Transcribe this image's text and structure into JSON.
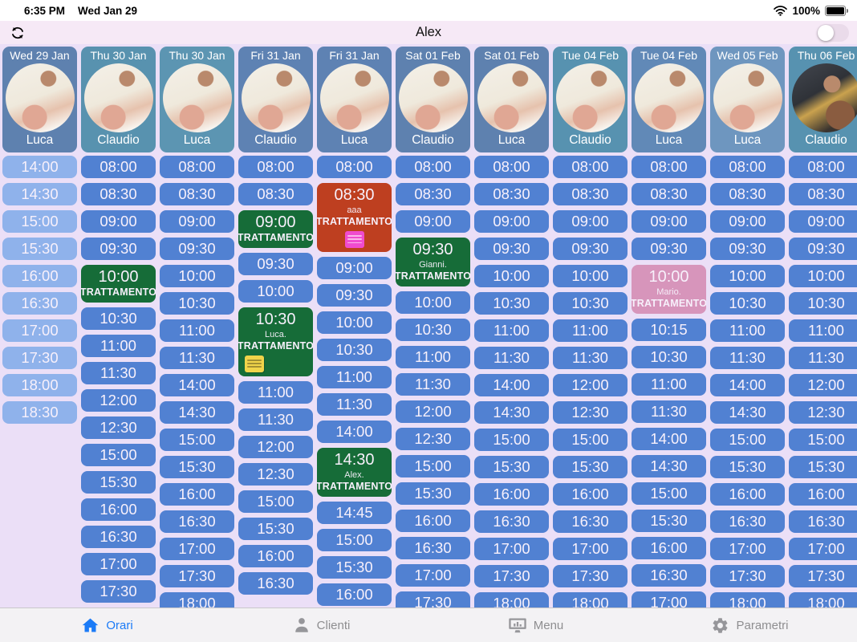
{
  "status_bar": {
    "time": "6:35 PM",
    "date": "Wed Jan 29",
    "battery": "100%"
  },
  "header": {
    "title": "Alex",
    "toggle_on": false
  },
  "colors": {
    "green": "#166C38",
    "red": "#BE3F20",
    "pink": "#D795BB",
    "slot_blue": "#5181D2",
    "slot_light_blue": "#8FB2EB",
    "background_lavender": "#EBDFF7",
    "header_bar_pink": "#F6E9F6",
    "tab_active_blue": "#1B7BF7"
  },
  "tab_bar": {
    "items": [
      {
        "label": "Orari",
        "active": true
      },
      {
        "label": "Clienti",
        "active": false
      },
      {
        "label": "Menu",
        "active": false
      },
      {
        "label": "Parametri",
        "active": false
      }
    ]
  },
  "schedule": {
    "columns": [
      {
        "date": "Wed 29 Jan",
        "name": "Luca",
        "header_color": "#5E81AF",
        "variant": "light",
        "avatar": "standard",
        "slots": [
          {
            "time": "14:00"
          },
          {
            "time": "14:30"
          },
          {
            "time": "15:00"
          },
          {
            "time": "15:30"
          },
          {
            "time": "16:00"
          },
          {
            "time": "16:30"
          },
          {
            "time": "17:00"
          },
          {
            "time": "17:30"
          },
          {
            "time": "18:00"
          },
          {
            "time": "18:30"
          }
        ]
      },
      {
        "date": "Thu 30 Jan",
        "name": "Claudio",
        "header_color": "#5892AF",
        "variant": "regular",
        "avatar": "standard",
        "slots": [
          {
            "time": "08:00"
          },
          {
            "time": "08:30"
          },
          {
            "time": "09:00"
          },
          {
            "time": "09:30"
          },
          {
            "time": "10:00",
            "status": "TRATTAMENTO",
            "color": "green"
          },
          {
            "time": "10:30"
          },
          {
            "time": "11:00"
          },
          {
            "time": "11:30"
          },
          {
            "time": "12:00"
          },
          {
            "time": "12:30"
          },
          {
            "time": "15:00"
          },
          {
            "time": "15:30"
          },
          {
            "time": "16:00"
          },
          {
            "time": "16:30"
          },
          {
            "time": "17:00"
          },
          {
            "time": "17:30"
          }
        ]
      },
      {
        "date": "Thu 30 Jan",
        "name": "Luca",
        "header_color": "#5C95B2",
        "variant": "regular",
        "avatar": "standard",
        "slots": [
          {
            "time": "08:00"
          },
          {
            "time": "08:30"
          },
          {
            "time": "09:00"
          },
          {
            "time": "09:30"
          },
          {
            "time": "10:00"
          },
          {
            "time": "10:30"
          },
          {
            "time": "11:00"
          },
          {
            "time": "11:30"
          },
          {
            "time": "14:00"
          },
          {
            "time": "14:30"
          },
          {
            "time": "15:00"
          },
          {
            "time": "15:30"
          },
          {
            "time": "16:00"
          },
          {
            "time": "16:30"
          },
          {
            "time": "17:00"
          },
          {
            "time": "17:30"
          },
          {
            "time": "18:00"
          }
        ]
      },
      {
        "date": "Fri 31 Jan",
        "name": "Claudio",
        "header_color": "#5E82B3",
        "variant": "regular",
        "avatar": "standard",
        "slots": [
          {
            "time": "08:00"
          },
          {
            "time": "08:30"
          },
          {
            "time": "09:00",
            "status": "TRATTAMENTO",
            "color": "green"
          },
          {
            "time": "09:30"
          },
          {
            "time": "10:00"
          },
          {
            "time": "10:30",
            "status": "TRATTAMENTO",
            "color": "green",
            "client": "Luca.",
            "note": "yellow"
          },
          {
            "time": "11:00"
          },
          {
            "time": "11:30"
          },
          {
            "time": "12:00"
          },
          {
            "time": "12:30"
          },
          {
            "time": "15:00"
          },
          {
            "time": "15:30"
          },
          {
            "time": "16:00"
          },
          {
            "time": "16:30"
          }
        ]
      },
      {
        "date": "Fri 31 Jan",
        "name": "Luca",
        "header_color": "#5E82B3",
        "variant": "regular",
        "avatar": "standard",
        "slots": [
          {
            "time": "08:00"
          },
          {
            "time": "08:30",
            "status": "TRATTAMENTO",
            "color": "red",
            "client": "aaa",
            "note": "pink"
          },
          {
            "time": "09:00"
          },
          {
            "time": "09:30"
          },
          {
            "time": "10:00"
          },
          {
            "time": "10:30"
          },
          {
            "time": "11:00"
          },
          {
            "time": "11:30"
          },
          {
            "time": "14:00"
          },
          {
            "time": "14:30",
            "status": "TRATTAMENTO",
            "color": "green",
            "client": "Alex."
          },
          {
            "time": "14:45"
          },
          {
            "time": "15:00"
          },
          {
            "time": "15:30"
          },
          {
            "time": "16:00"
          }
        ]
      },
      {
        "date": "Sat 01 Feb",
        "name": "Claudio",
        "header_color": "#5E81AF",
        "variant": "regular",
        "avatar": "standard",
        "slots": [
          {
            "time": "08:00"
          },
          {
            "time": "08:30"
          },
          {
            "time": "09:00"
          },
          {
            "time": "09:30",
            "status": "TRATTAMENTO",
            "color": "green",
            "client": "Gianni."
          },
          {
            "time": "10:00"
          },
          {
            "time": "10:30"
          },
          {
            "time": "11:00"
          },
          {
            "time": "11:30"
          },
          {
            "time": "12:00"
          },
          {
            "time": "12:30"
          },
          {
            "time": "15:00"
          },
          {
            "time": "15:30"
          },
          {
            "time": "16:00"
          },
          {
            "time": "16:30"
          },
          {
            "time": "17:00"
          },
          {
            "time": "17:30"
          }
        ]
      },
      {
        "date": "Sat 01 Feb",
        "name": "Luca",
        "header_color": "#5E81AF",
        "variant": "regular",
        "avatar": "standard",
        "slots": [
          {
            "time": "08:00"
          },
          {
            "time": "08:30"
          },
          {
            "time": "09:00"
          },
          {
            "time": "09:30"
          },
          {
            "time": "10:00"
          },
          {
            "time": "10:30"
          },
          {
            "time": "11:00"
          },
          {
            "time": "11:30"
          },
          {
            "time": "14:00"
          },
          {
            "time": "14:30"
          },
          {
            "time": "15:00"
          },
          {
            "time": "15:30"
          },
          {
            "time": "16:00"
          },
          {
            "time": "16:30"
          },
          {
            "time": "17:00"
          },
          {
            "time": "17:30"
          },
          {
            "time": "18:00"
          }
        ]
      },
      {
        "date": "Tue 04 Feb",
        "name": "Claudio",
        "header_color": "#5792B0",
        "variant": "regular",
        "avatar": "standard",
        "slots": [
          {
            "time": "08:00"
          },
          {
            "time": "08:30"
          },
          {
            "time": "09:00"
          },
          {
            "time": "09:30"
          },
          {
            "time": "10:00"
          },
          {
            "time": "10:30"
          },
          {
            "time": "11:00"
          },
          {
            "time": "11:30"
          },
          {
            "time": "12:00"
          },
          {
            "time": "12:30"
          },
          {
            "time": "15:00"
          },
          {
            "time": "15:30"
          },
          {
            "time": "16:00"
          },
          {
            "time": "16:30"
          },
          {
            "time": "17:00"
          },
          {
            "time": "17:30"
          },
          {
            "time": "18:00"
          }
        ]
      },
      {
        "date": "Tue 04 Feb",
        "name": "Luca",
        "header_color": "#6189B7",
        "variant": "regular",
        "avatar": "standard",
        "slots": [
          {
            "time": "08:00"
          },
          {
            "time": "08:30"
          },
          {
            "time": "09:00"
          },
          {
            "time": "09:30"
          },
          {
            "time": "10:00",
            "status": "TRATTAMENTO",
            "color": "pink",
            "client": "Mario."
          },
          {
            "time": "10:15"
          },
          {
            "time": "10:30"
          },
          {
            "time": "11:00"
          },
          {
            "time": "11:30"
          },
          {
            "time": "14:00"
          },
          {
            "time": "14:30"
          },
          {
            "time": "15:00"
          },
          {
            "time": "15:30"
          },
          {
            "time": "16:00"
          },
          {
            "time": "16:30"
          },
          {
            "time": "17:00"
          }
        ]
      },
      {
        "date": "Wed 05 Feb",
        "name": "Luca",
        "header_color": "#6E96BF",
        "variant": "regular",
        "avatar": "standard",
        "slots": [
          {
            "time": "08:00"
          },
          {
            "time": "08:30"
          },
          {
            "time": "09:00"
          },
          {
            "time": "09:30"
          },
          {
            "time": "10:00"
          },
          {
            "time": "10:30"
          },
          {
            "time": "11:00"
          },
          {
            "time": "11:30"
          },
          {
            "time": "14:00"
          },
          {
            "time": "14:30"
          },
          {
            "time": "15:00"
          },
          {
            "time": "15:30"
          },
          {
            "time": "16:00"
          },
          {
            "time": "16:30"
          },
          {
            "time": "17:00"
          },
          {
            "time": "17:30"
          },
          {
            "time": "18:00"
          }
        ]
      },
      {
        "date": "Thu 06 Feb",
        "name": "Claudio",
        "header_color": "#5792B0",
        "variant": "regular",
        "avatar": "dark",
        "slots": [
          {
            "time": "08:00"
          },
          {
            "time": "08:30"
          },
          {
            "time": "09:00"
          },
          {
            "time": "09:30"
          },
          {
            "time": "10:00"
          },
          {
            "time": "10:30"
          },
          {
            "time": "11:00"
          },
          {
            "time": "11:30"
          },
          {
            "time": "12:00"
          },
          {
            "time": "12:30"
          },
          {
            "time": "15:00"
          },
          {
            "time": "15:30"
          },
          {
            "time": "16:00"
          },
          {
            "time": "16:30"
          },
          {
            "time": "17:00"
          },
          {
            "time": "17:30"
          },
          {
            "time": "18:00"
          }
        ]
      }
    ]
  }
}
